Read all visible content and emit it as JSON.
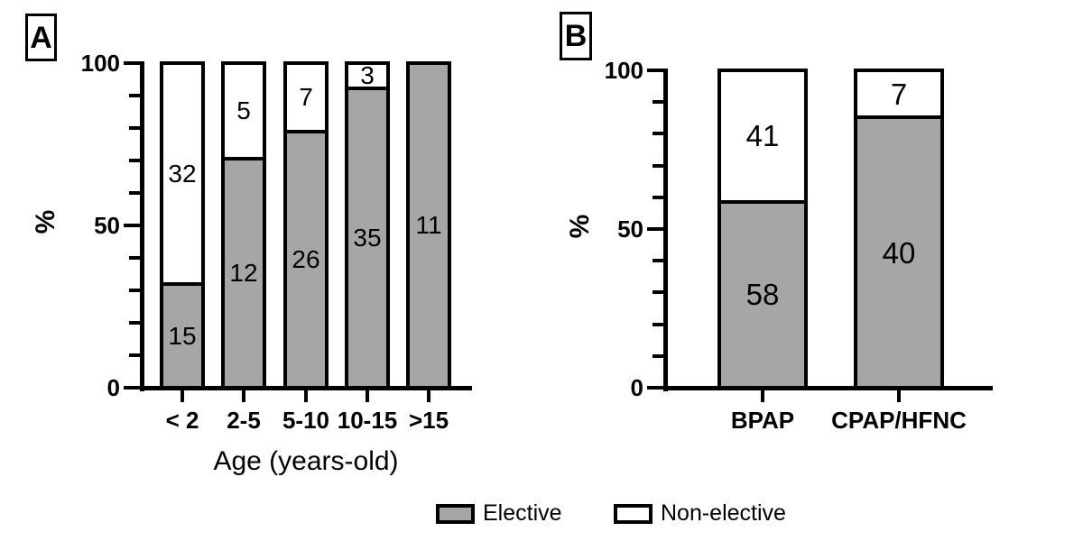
{
  "figure": {
    "background": "#ffffff",
    "bar_border_color": "#000000"
  },
  "legend": {
    "items": [
      {
        "label": "Elective",
        "color": "#a6a6a6"
      },
      {
        "label": "Non-elective",
        "color": "#ffffff"
      }
    ]
  },
  "chart_data": [
    {
      "type": "bar",
      "stacked": true,
      "percent_normalized": true,
      "panel_label": "A",
      "title": "",
      "xlabel": "Age (years-old)",
      "ylabel": "%",
      "ylim": [
        0,
        100
      ],
      "yticks_major": [
        0,
        50,
        100
      ],
      "yticks_minor_step": 10,
      "grid": false,
      "categories": [
        "< 2",
        "2-5",
        "5-10",
        "10-15",
        ">15"
      ],
      "series": [
        {
          "name": "Elective",
          "color": "#a6a6a6",
          "values": [
            15,
            12,
            26,
            35,
            11
          ]
        },
        {
          "name": "Non-elective",
          "color": "#ffffff",
          "values": [
            32,
            5,
            7,
            3,
            0
          ]
        }
      ],
      "segment_percentages": {
        "elective": [
          31.9,
          70.6,
          78.8,
          92.1,
          100.0
        ],
        "non_elective": [
          68.1,
          29.4,
          21.2,
          7.9,
          0.0
        ]
      }
    },
    {
      "type": "bar",
      "stacked": true,
      "percent_normalized": true,
      "panel_label": "B",
      "title": "",
      "xlabel": "",
      "ylabel": "%",
      "ylim": [
        0,
        100
      ],
      "yticks_major": [
        0,
        50,
        100
      ],
      "yticks_minor_step": 10,
      "grid": false,
      "categories": [
        "BPAP",
        "CPAP/HFNC"
      ],
      "series": [
        {
          "name": "Elective",
          "color": "#a6a6a6",
          "values": [
            58,
            40
          ]
        },
        {
          "name": "Non-elective",
          "color": "#ffffff",
          "values": [
            41,
            7
          ]
        }
      ],
      "segment_percentages": {
        "elective": [
          58.6,
          85.1
        ],
        "non_elective": [
          41.4,
          14.9
        ]
      }
    }
  ]
}
